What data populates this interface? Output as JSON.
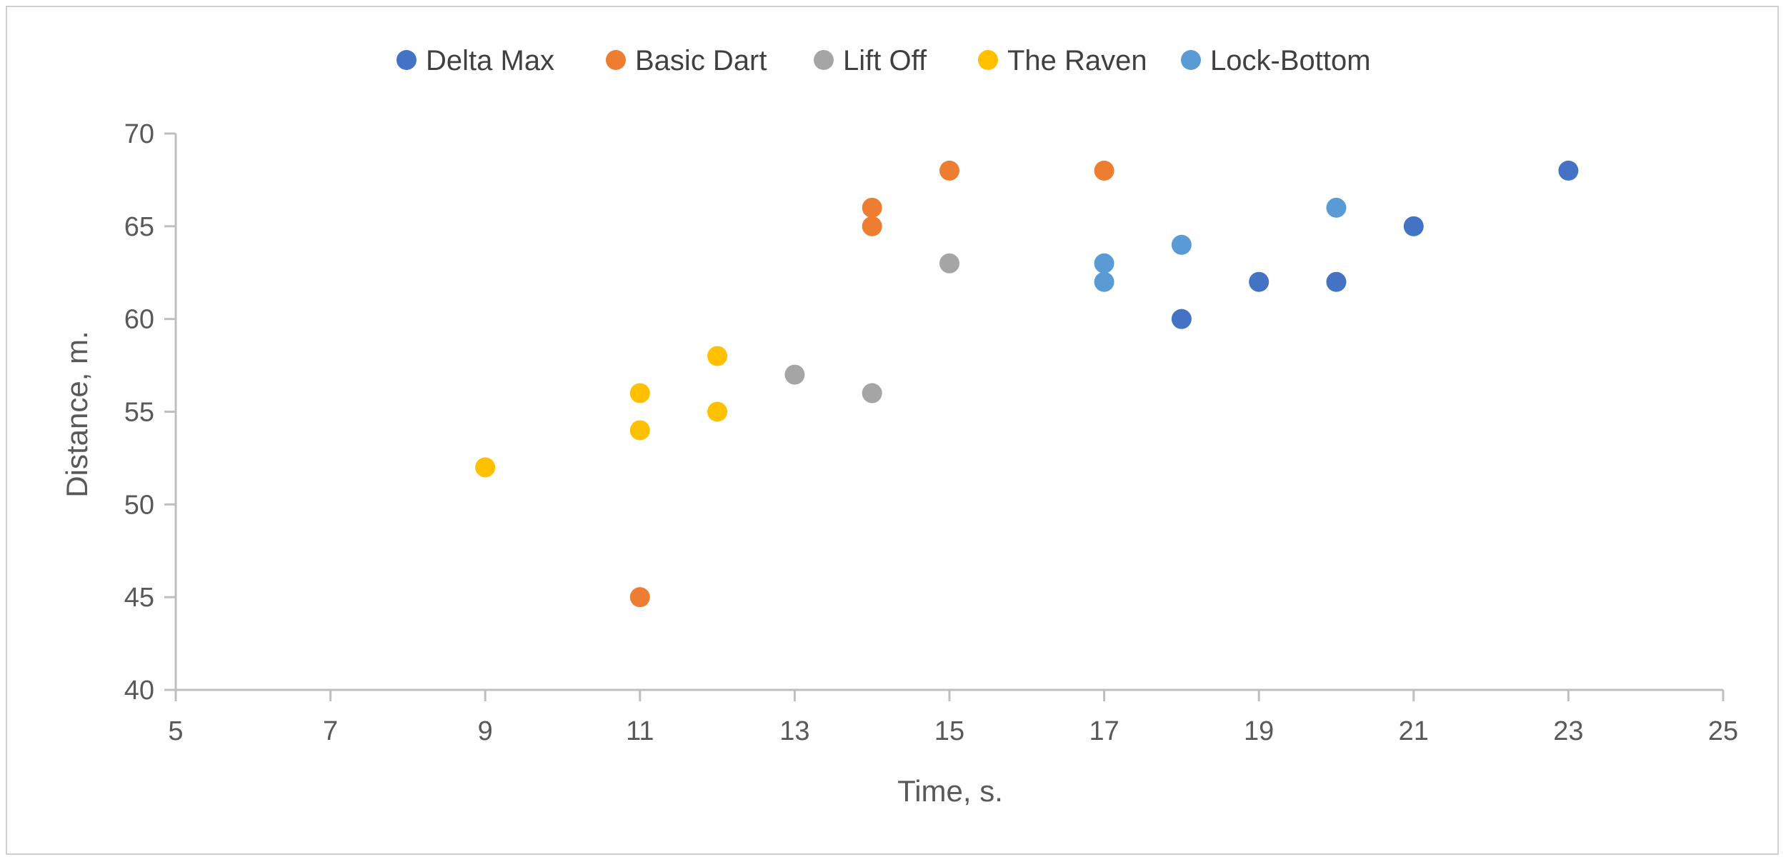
{
  "chart_data": {
    "type": "scatter",
    "xlabel": "Time, s.",
    "ylabel": "Distance, m.",
    "xlim": [
      5,
      25
    ],
    "ylim": [
      40,
      70
    ],
    "x_ticks": [
      5,
      7,
      9,
      11,
      13,
      15,
      17,
      19,
      21,
      23,
      25
    ],
    "y_ticks": [
      40,
      45,
      50,
      55,
      60,
      65,
      70
    ],
    "grid": false,
    "legend_position": "top",
    "series": [
      {
        "name": "Delta Max",
        "color": "#4472C4",
        "points": [
          [
            18,
            60
          ],
          [
            19,
            62
          ],
          [
            20,
            62
          ],
          [
            21,
            65
          ],
          [
            23,
            68
          ]
        ]
      },
      {
        "name": "Basic Dart",
        "color": "#ED7D31",
        "points": [
          [
            11,
            45
          ],
          [
            14,
            65
          ],
          [
            14,
            66
          ],
          [
            15,
            68
          ],
          [
            17,
            68
          ]
        ]
      },
      {
        "name": "Lift Off",
        "color": "#A5A5A5",
        "points": [
          [
            13,
            57
          ],
          [
            14,
            56
          ],
          [
            15,
            63
          ]
        ]
      },
      {
        "name": "The Raven",
        "color": "#FFC000",
        "points": [
          [
            9,
            52
          ],
          [
            11,
            54
          ],
          [
            11,
            56
          ],
          [
            12,
            55
          ],
          [
            12,
            58
          ]
        ]
      },
      {
        "name": "Lock-Bottom",
        "color": "#5B9BD5",
        "points": [
          [
            17,
            62
          ],
          [
            17,
            63
          ],
          [
            18,
            64
          ],
          [
            20,
            66
          ]
        ]
      }
    ]
  }
}
